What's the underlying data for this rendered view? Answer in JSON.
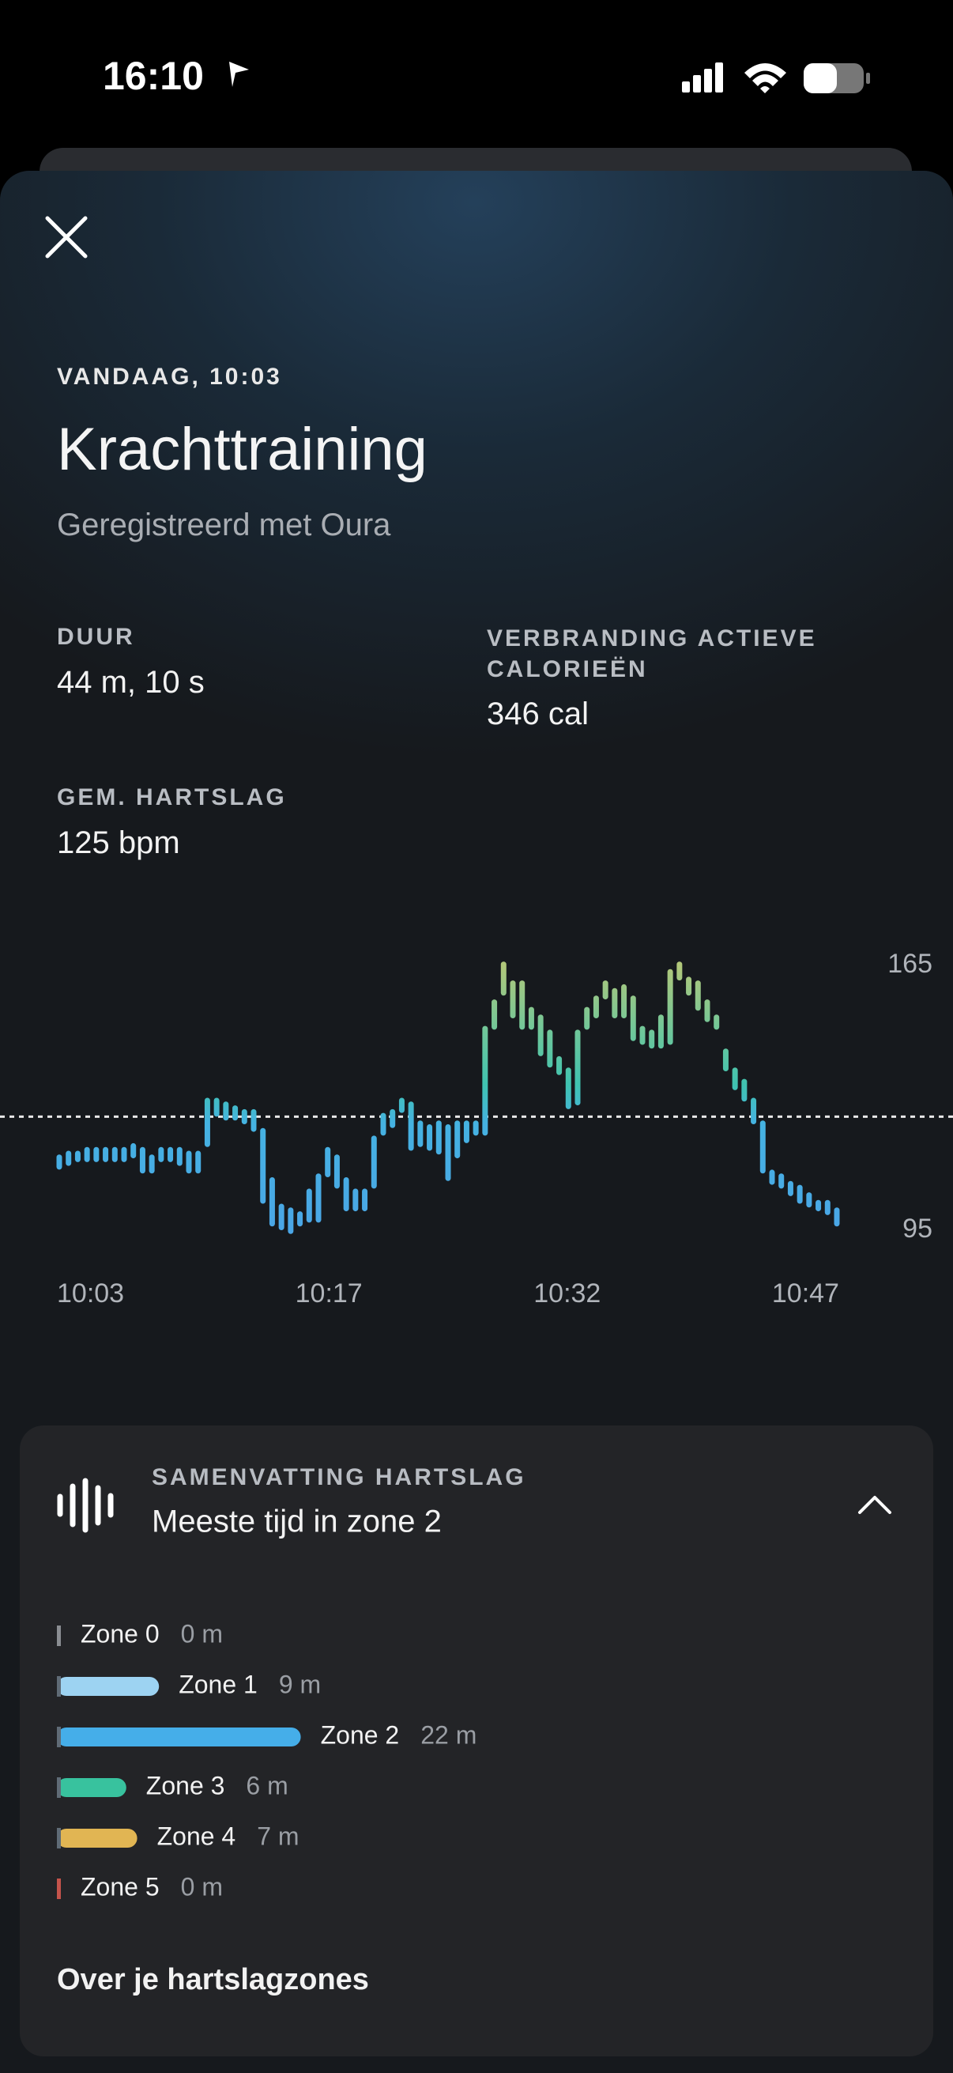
{
  "status_bar": {
    "time": "16:10"
  },
  "header": {
    "date_time": "VANDAAG, 10:03",
    "title": "Krachttraining",
    "subtitle": "Geregistreerd met Oura"
  },
  "stats": [
    {
      "label": "DUUR",
      "value": "44 m, 10 s"
    },
    {
      "label": "VERBRANDING ACTIEVE CALORIEËN",
      "value": "346 cal"
    },
    {
      "label": "GEM. HARTSLAG",
      "value": "125 bpm"
    }
  ],
  "chart_data": {
    "type": "range_bar",
    "x_labels": [
      "10:03",
      "10:17",
      "10:32",
      "10:47"
    ],
    "lows": [
      111,
      112,
      113,
      113,
      113,
      113,
      113,
      113,
      114,
      110,
      110,
      113,
      113,
      112,
      110,
      110,
      117,
      125,
      124,
      124,
      123,
      121,
      102,
      96,
      95,
      94,
      96,
      97,
      97,
      109,
      106,
      100,
      100,
      100,
      106,
      120,
      122,
      126,
      116,
      117,
      116,
      115,
      108,
      114,
      118,
      120,
      120,
      148,
      157,
      151,
      148,
      148,
      141,
      138,
      136,
      127,
      128,
      148,
      151,
      156,
      151,
      151,
      145,
      144,
      143,
      143,
      144,
      161,
      157,
      153,
      150,
      148,
      137,
      132,
      129,
      123,
      110,
      107,
      106,
      104,
      102,
      101,
      100,
      99,
      96
    ],
    "highs": [
      115,
      116,
      116,
      117,
      117,
      117,
      117,
      117,
      118,
      117,
      115,
      117,
      117,
      117,
      116,
      116,
      130,
      130,
      129,
      128,
      127,
      127,
      122,
      109,
      102,
      101,
      100,
      106,
      110,
      117,
      115,
      109,
      106,
      106,
      120,
      126,
      127,
      130,
      129,
      124,
      123,
      124,
      123,
      124,
      124,
      124,
      149,
      156,
      166,
      161,
      161,
      154,
      152,
      148,
      141,
      138,
      148,
      154,
      157,
      161,
      159,
      160,
      157,
      149,
      148,
      152,
      164,
      166,
      162,
      161,
      156,
      152,
      143,
      138,
      135,
      130,
      124,
      111,
      110,
      108,
      107,
      105,
      103,
      103,
      101
    ],
    "ylim": [
      95,
      165
    ],
    "yticks": [
      95,
      165
    ],
    "average": 125
  },
  "zone_summary": {
    "title": "SAMENVATTING HARTSLAG",
    "subtitle": "Meeste tijd in zone 2",
    "zones": [
      {
        "name": "Zone 0",
        "minutes": 0,
        "value_label": "0 m",
        "color": "#8a8d92"
      },
      {
        "name": "Zone 1",
        "minutes": 9,
        "value_label": "9 m",
        "color": "#9dd3f2"
      },
      {
        "name": "Zone 2",
        "minutes": 22,
        "value_label": "22 m",
        "color": "#45aee9"
      },
      {
        "name": "Zone 3",
        "minutes": 6,
        "value_label": "6 m",
        "color": "#38c29e"
      },
      {
        "name": "Zone 4",
        "minutes": 7,
        "value_label": "7 m",
        "color": "#e1b553"
      },
      {
        "name": "Zone 5",
        "minutes": 0,
        "value_label": "0 m",
        "color": "#c4534b"
      }
    ],
    "link": "Over je hartslagzones"
  }
}
